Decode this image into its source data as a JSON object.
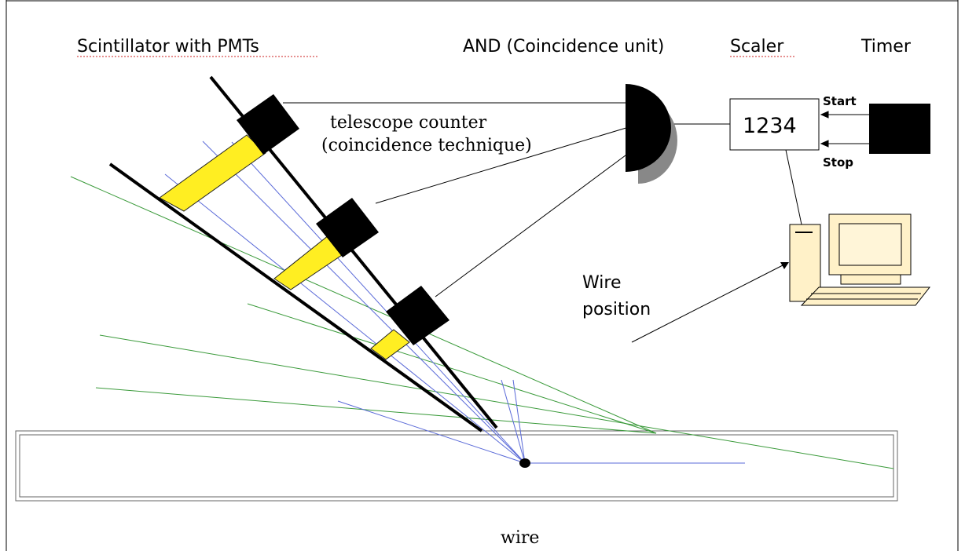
{
  "labels": {
    "scintillator": "Scintillator with PMTs",
    "and_unit": "AND (Coincidence unit)",
    "scaler": "Scaler",
    "timer": "Timer",
    "telescope_line1": "telescope counter",
    "telescope_line2": "(coincidence technique)",
    "scaler_display": "1234",
    "start": "Start",
    "stop": "Stop",
    "wire_position_line1": "Wire",
    "wire_position_line2": "position",
    "wire": "wire"
  },
  "colors": {
    "frame": "#000000",
    "scintillator": "#ffee22",
    "pmt": "#000000",
    "blue_ray": "#5a6ad8",
    "green_ray": "#3a9a3a",
    "and_shadow": "#888888"
  },
  "icons": {
    "pmt": "black-square",
    "and_gate": "half-disk",
    "timer": "black-box",
    "computer": "desktop-computer-icon"
  }
}
